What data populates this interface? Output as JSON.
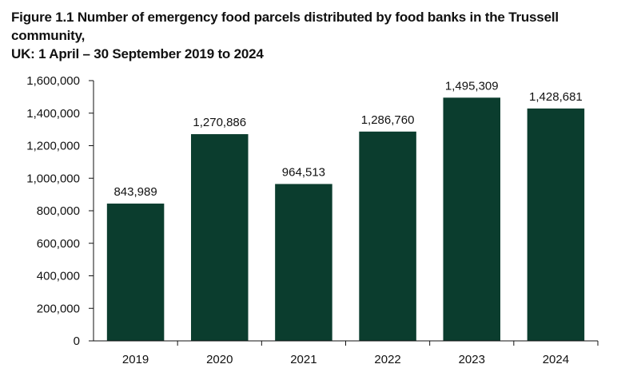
{
  "chart_data": {
    "type": "bar",
    "title_line1": "Figure 1.1 Number of emergency food parcels distributed by food banks in the Trussell community,",
    "title_line2": "UK: 1 April – 30 September 2019 to 2024",
    "categories": [
      "2019",
      "2020",
      "2021",
      "2022",
      "2023",
      "2024"
    ],
    "values": [
      843989,
      1270886,
      964513,
      1286760,
      1495309,
      1428681
    ],
    "value_labels": [
      "843,989",
      "1,270,886",
      "964,513",
      "1,286,760",
      "1,495,309",
      "1,428,681"
    ],
    "y_ticks": [
      0,
      200000,
      400000,
      600000,
      800000,
      1000000,
      1200000,
      1400000,
      1600000
    ],
    "y_tick_labels": [
      "0",
      "200,000",
      "400,000",
      "600,000",
      "800,000",
      "1,000,000",
      "1,200,000",
      "1,400,000",
      "1,600,000"
    ],
    "ylim": [
      0,
      1600000
    ],
    "xlabel": "",
    "ylabel": "",
    "grid": false,
    "bar_color": "#0b3d2e",
    "axis_color": "#111111"
  }
}
